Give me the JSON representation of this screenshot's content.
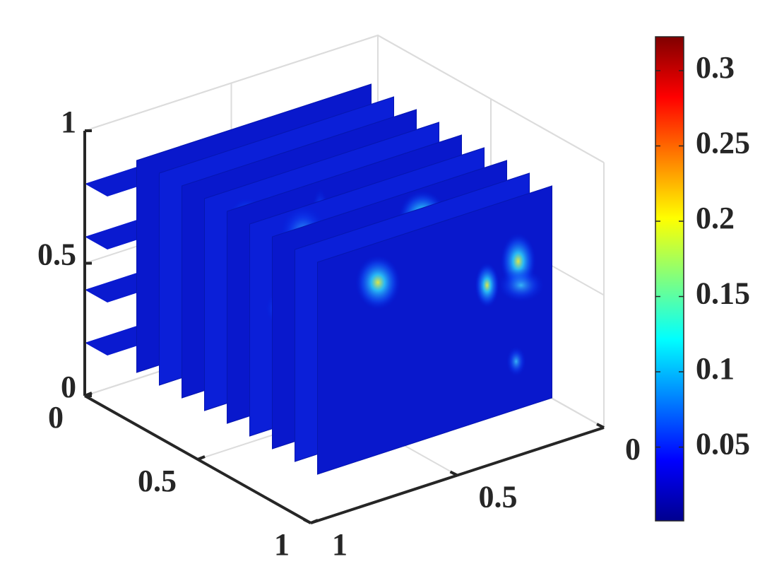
{
  "chart_data": {
    "type": "slice3d",
    "xlim": [
      0,
      1
    ],
    "xticks": [
      0,
      0.5,
      1
    ],
    "ylim": [
      0,
      1
    ],
    "yticks": [
      0,
      0.5,
      1
    ],
    "zlim": [
      0,
      1
    ],
    "zticks": [
      0,
      0.5,
      1
    ],
    "grid": true,
    "colormap": "jet",
    "colorbar": {
      "clim": [
        0.001,
        0.3225
      ],
      "ticks": [
        0.05,
        0.1,
        0.15,
        0.2,
        0.25,
        0.3
      ]
    }
  }
}
